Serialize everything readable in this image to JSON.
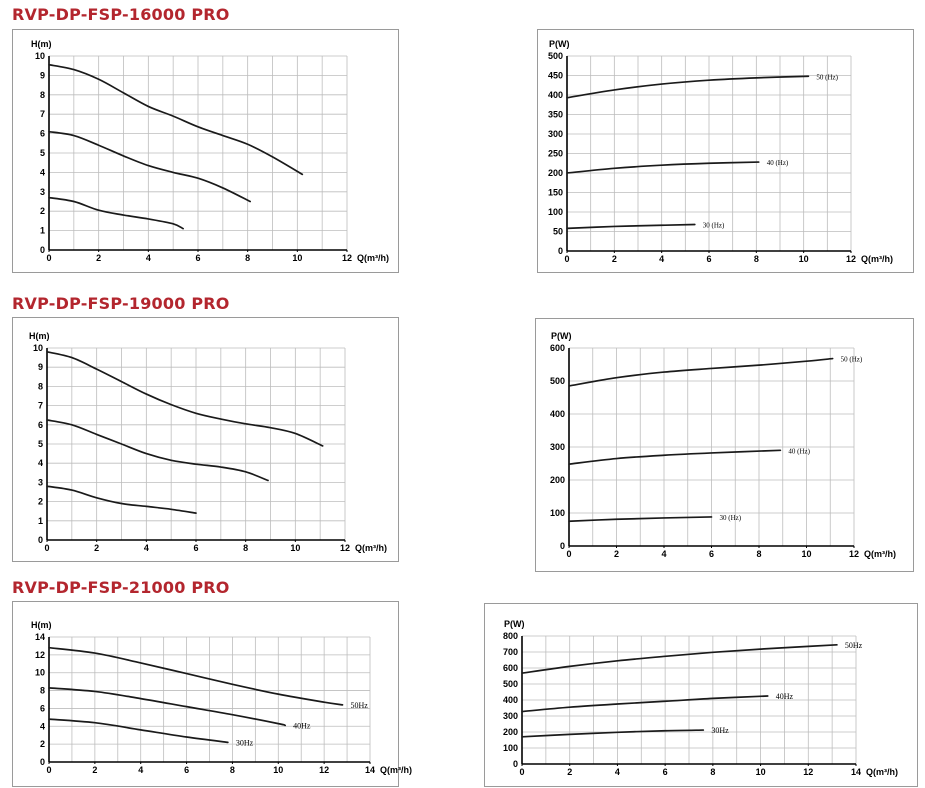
{
  "models": [
    {
      "title": "RVP-DP-FSP-16000 PRO"
    },
    {
      "title": "RVP-DP-FSP-19000 PRO"
    },
    {
      "title": "RVP-DP-FSP-21000 PRO"
    }
  ],
  "chart_data": [
    {
      "type": "line",
      "id": "head-16000",
      "title": "",
      "xlabel": "Q(m³/h)",
      "ylabel": "H(m)",
      "xlim": [
        0,
        12
      ],
      "ylim": [
        0,
        10
      ],
      "xticks": [
        0,
        2,
        4,
        6,
        8,
        10,
        12
      ],
      "yticks": [
        0,
        1,
        2,
        3,
        4,
        5,
        6,
        7,
        8,
        9,
        10
      ],
      "grid": true,
      "series": [
        {
          "name": "",
          "x": [
            0,
            1,
            2,
            3,
            4,
            5,
            6,
            7,
            8,
            9,
            10.2
          ],
          "y": [
            9.55,
            9.3,
            8.8,
            8.1,
            7.4,
            6.9,
            6.35,
            5.9,
            5.45,
            4.8,
            3.9
          ]
        },
        {
          "name": "",
          "x": [
            0,
            1,
            2,
            3,
            4,
            5,
            6,
            7,
            8.1
          ],
          "y": [
            6.1,
            5.9,
            5.4,
            4.85,
            4.35,
            4.0,
            3.7,
            3.2,
            2.5
          ]
        },
        {
          "name": "",
          "x": [
            0,
            1,
            2,
            3,
            4,
            5,
            5.4
          ],
          "y": [
            2.7,
            2.5,
            2.05,
            1.8,
            1.6,
            1.35,
            1.1
          ]
        }
      ]
    },
    {
      "type": "line",
      "id": "power-16000",
      "title": "",
      "xlabel": "Q(m³/h)",
      "ylabel": "P(W)",
      "xlim": [
        0,
        12
      ],
      "ylim": [
        0,
        500
      ],
      "xticks": [
        0,
        2,
        4,
        6,
        8,
        10,
        12
      ],
      "yticks": [
        0,
        50,
        100,
        150,
        200,
        250,
        300,
        350,
        400,
        450,
        500
      ],
      "grid": true,
      "series": [
        {
          "name": "50 (Hz)",
          "x": [
            0,
            2,
            4,
            6,
            8,
            10.2
          ],
          "y": [
            393,
            413,
            428,
            438,
            444,
            448
          ]
        },
        {
          "name": "40 (Hz)",
          "x": [
            0,
            2,
            4,
            6,
            8.1
          ],
          "y": [
            200,
            212,
            220,
            225,
            228
          ]
        },
        {
          "name": "30 (Hz)",
          "x": [
            0,
            2,
            4,
            5.4
          ],
          "y": [
            58,
            63,
            66,
            68
          ]
        }
      ]
    },
    {
      "type": "line",
      "id": "head-19000",
      "title": "",
      "xlabel": "Q(m³/h)",
      "ylabel": "H(m)",
      "xlim": [
        0,
        12
      ],
      "ylim": [
        0,
        10
      ],
      "xticks": [
        0,
        2,
        4,
        6,
        8,
        10,
        12
      ],
      "yticks": [
        0,
        1,
        2,
        3,
        4,
        5,
        6,
        7,
        8,
        9,
        10
      ],
      "grid": true,
      "series": [
        {
          "name": "",
          "x": [
            0,
            1,
            2,
            3,
            4,
            5,
            6,
            7,
            8,
            9,
            10,
            11.1
          ],
          "y": [
            9.8,
            9.5,
            8.9,
            8.25,
            7.6,
            7.05,
            6.6,
            6.3,
            6.05,
            5.85,
            5.55,
            4.9
          ]
        },
        {
          "name": "",
          "x": [
            0,
            1,
            2,
            3,
            4,
            5,
            6,
            7,
            8,
            8.9
          ],
          "y": [
            6.25,
            6.0,
            5.5,
            5.0,
            4.5,
            4.15,
            3.95,
            3.8,
            3.55,
            3.1
          ]
        },
        {
          "name": "",
          "x": [
            0,
            1,
            2,
            3,
            4,
            5,
            6
          ],
          "y": [
            2.8,
            2.6,
            2.2,
            1.9,
            1.75,
            1.6,
            1.4
          ]
        }
      ]
    },
    {
      "type": "line",
      "id": "power-19000",
      "title": "",
      "xlabel": "Q(m³/h)",
      "ylabel": "P(W)",
      "xlim": [
        0,
        12
      ],
      "ylim": [
        0,
        600
      ],
      "xticks": [
        0,
        2,
        4,
        6,
        8,
        10,
        12
      ],
      "yticks": [
        0,
        100,
        200,
        300,
        400,
        500,
        600
      ],
      "grid": true,
      "series": [
        {
          "name": "50 (Hz)",
          "x": [
            0,
            2,
            4,
            6,
            8,
            10,
            11.1
          ],
          "y": [
            485,
            510,
            527,
            538,
            548,
            560,
            568
          ]
        },
        {
          "name": "40 (Hz)",
          "x": [
            0,
            2,
            4,
            6,
            8.9
          ],
          "y": [
            248,
            265,
            275,
            282,
            290
          ]
        },
        {
          "name": "30 (Hz)",
          "x": [
            0,
            2,
            4,
            6
          ],
          "y": [
            75,
            81,
            85,
            88
          ]
        }
      ]
    },
    {
      "type": "line",
      "id": "head-21000",
      "title": "",
      "xlabel": "Q(m³/h)",
      "ylabel": "H(m)",
      "xlim": [
        0,
        14
      ],
      "ylim": [
        0,
        14
      ],
      "xticks": [
        0,
        2,
        4,
        6,
        8,
        10,
        12,
        14
      ],
      "yticks": [
        0,
        2,
        4,
        6,
        8,
        10,
        12,
        14
      ],
      "grid": true,
      "series": [
        {
          "name": "50Hz",
          "x": [
            0,
            2,
            4,
            6,
            8,
            10,
            12,
            12.8
          ],
          "y": [
            12.8,
            12.2,
            11.1,
            9.9,
            8.7,
            7.6,
            6.7,
            6.4
          ]
        },
        {
          "name": "40Hz",
          "x": [
            0,
            2,
            4,
            6,
            8,
            10,
            10.3
          ],
          "y": [
            8.3,
            7.9,
            7.1,
            6.2,
            5.3,
            4.3,
            4.1
          ]
        },
        {
          "name": "30Hz",
          "x": [
            0,
            2,
            4,
            6,
            7.8
          ],
          "y": [
            4.8,
            4.4,
            3.6,
            2.8,
            2.2
          ]
        }
      ]
    },
    {
      "type": "line",
      "id": "power-21000",
      "title": "",
      "xlabel": "Q(m³/h)",
      "ylabel": "P(W)",
      "xlim": [
        0,
        14
      ],
      "ylim": [
        0,
        800
      ],
      "xticks": [
        0,
        2,
        4,
        6,
        8,
        10,
        12,
        14
      ],
      "yticks": [
        0,
        100,
        200,
        300,
        400,
        500,
        600,
        700,
        800
      ],
      "grid": true,
      "series": [
        {
          "name": "50Hz",
          "x": [
            0,
            2,
            4,
            6,
            8,
            10,
            12,
            13.2
          ],
          "y": [
            568,
            610,
            645,
            673,
            698,
            718,
            735,
            745
          ]
        },
        {
          "name": "40Hz",
          "x": [
            0,
            2,
            4,
            6,
            8,
            10.3
          ],
          "y": [
            328,
            355,
            375,
            392,
            410,
            425
          ]
        },
        {
          "name": "30Hz",
          "x": [
            0,
            2,
            4,
            6,
            7.6
          ],
          "y": [
            170,
            185,
            198,
            208,
            212
          ]
        }
      ]
    }
  ]
}
